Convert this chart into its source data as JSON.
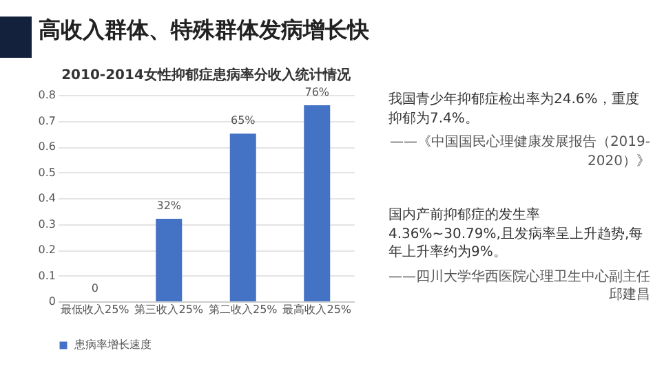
{
  "chart_data": {
    "type": "bar",
    "title": "高收入群体、特殊群体发病增长快",
    "subtitle": "2010-2014女性抑郁症患病率分收入统计情况",
    "categories": [
      "最低收入25%",
      "第三收入25%",
      "第二收入25%",
      "最高收入25%"
    ],
    "series": [
      {
        "name": "患病率增长速度",
        "color": "#4472c4",
        "values": [
          0,
          0.32,
          0.65,
          0.76
        ],
        "value_labels": [
          "0",
          "32%",
          "65%",
          "76%"
        ]
      }
    ],
    "ylim": [
      0,
      0.8
    ],
    "yticks": [
      0,
      0.1,
      0.2,
      0.3,
      0.4,
      0.5,
      0.6,
      0.7,
      0.8
    ],
    "grid": "y",
    "legend": "bottom",
    "annotations": [
      "我国青少年抑郁症检出率为24.6%，重度抑郁为7.4%。",
      "——《中国国民心理健康发展报告（2019-2020）》",
      "国内产前抑郁症的发生率4.36%~30.79%,且发病率呈上升趋势,每年上升率约为9%。",
      "——四川大学华西医院心理卫生中心副主任邱建昌"
    ]
  }
}
